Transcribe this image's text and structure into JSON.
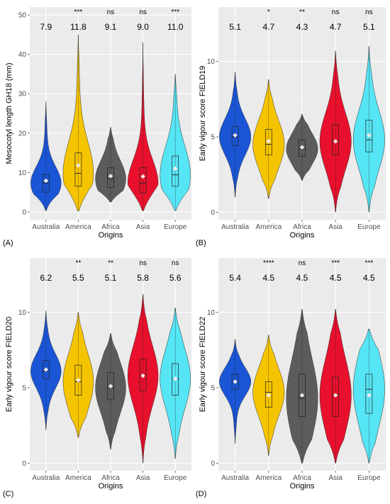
{
  "figure": {
    "x_axis_title": "Origins",
    "categories": [
      "Australia",
      "America",
      "Africa",
      "Asia",
      "Europe"
    ],
    "colors": {
      "Australia": "#1a55d6",
      "America": "#f5c400",
      "Africa": "#5c5c5c",
      "Asia": "#e8102c",
      "Europe": "#55e5f5"
    },
    "panel_background": "#ebebeb",
    "grid": true
  },
  "chart_data": [
    {
      "type": "violin",
      "panel_label": "(A)",
      "ylabel": "Mesocotyl length GH18 (mm)",
      "ylim": [
        -2,
        52
      ],
      "yticks": [
        0,
        10,
        20,
        30,
        40,
        50
      ],
      "categories": [
        "Australia",
        "America",
        "Africa",
        "Asia",
        "Europe"
      ],
      "means": [
        "7.9",
        "11.8",
        "9.1",
        "9.0",
        "11.0"
      ],
      "significance": [
        "",
        "***",
        "ns",
        "ns",
        "***"
      ],
      "mean_values": [
        7.9,
        11.8,
        9.1,
        9.0,
        11.0
      ],
      "min": [
        0.3,
        0.2,
        2.5,
        0.3,
        0.3
      ],
      "max": [
        28,
        45,
        21.5,
        43,
        35
      ],
      "q1": [
        5,
        6.5,
        6.2,
        4.8,
        6.5
      ],
      "median": [
        7.3,
        9.8,
        8.4,
        7.3,
        9.4
      ],
      "q3": [
        9.5,
        15,
        11.2,
        11.2,
        14.2
      ]
    },
    {
      "type": "violin",
      "panel_label": "(B)",
      "ylabel": "Early vigour score FIELD19",
      "ylim": [
        -0.5,
        13.6
      ],
      "yticks": [
        0,
        5,
        10
      ],
      "categories": [
        "Australia",
        "America",
        "Africa",
        "Asia",
        "Europe"
      ],
      "means": [
        "5.1",
        "4.7",
        "4.3",
        "4.7",
        "5.1"
      ],
      "significance": [
        "",
        "*",
        "**",
        "ns",
        "ns"
      ],
      "mean_values": [
        5.1,
        4.7,
        4.3,
        4.7,
        5.1
      ],
      "min": [
        1.0,
        0.9,
        2.1,
        0.0,
        0.0
      ],
      "max": [
        9.3,
        8.8,
        6.5,
        10.7,
        11.0
      ],
      "q1": [
        4.4,
        3.8,
        3.7,
        3.8,
        4.0
      ],
      "median": [
        5.0,
        4.5,
        4.2,
        4.7,
        4.8
      ],
      "q3": [
        5.7,
        5.5,
        4.8,
        5.8,
        6.1
      ]
    },
    {
      "type": "violin",
      "panel_label": "(C)",
      "ylabel": "Early vigour score FIELD20",
      "ylim": [
        -0.5,
        13.6
      ],
      "yticks": [
        0,
        5,
        10
      ],
      "categories": [
        "Australia",
        "America",
        "Africa",
        "Asia",
        "Europe"
      ],
      "means": [
        "6.2",
        "5.5",
        "5.1",
        "5.8",
        "5.6"
      ],
      "significance": [
        "",
        "**",
        "**",
        "ns",
        "ns"
      ],
      "mean_values": [
        6.2,
        5.5,
        5.1,
        5.8,
        5.6
      ],
      "min": [
        2.2,
        1.7,
        0.9,
        0.0,
        0.3
      ],
      "max": [
        10.1,
        10.0,
        8.6,
        11.2,
        10.3
      ],
      "q1": [
        5.6,
        4.5,
        4.2,
        4.8,
        4.5
      ],
      "median": [
        6.1,
        5.4,
        5.0,
        5.8,
        5.6
      ],
      "q3": [
        6.8,
        6.5,
        6.0,
        6.9,
        6.6
      ]
    },
    {
      "type": "violin",
      "panel_label": "(D)",
      "ylabel": "Early vigour score FIELD22",
      "ylim": [
        -0.5,
        13.6
      ],
      "yticks": [
        0,
        5,
        10
      ],
      "categories": [
        "Australia",
        "America",
        "Africa",
        "Asia",
        "Europe"
      ],
      "means": [
        "5.4",
        "4.5",
        "4.5",
        "4.5",
        "4.5"
      ],
      "significance": [
        "",
        "****",
        "ns",
        "***",
        "***"
      ],
      "mean_values": [
        5.4,
        4.5,
        4.5,
        4.5,
        4.5
      ],
      "min": [
        1.3,
        0.5,
        0.0,
        0.0,
        0.0
      ],
      "max": [
        8.2,
        8.5,
        10.2,
        10.2,
        8.9
      ],
      "q1": [
        4.9,
        3.7,
        3.1,
        3.1,
        3.3
      ],
      "median": [
        5.4,
        4.7,
        4.3,
        4.5,
        4.9
      ],
      "q3": [
        5.9,
        5.4,
        5.9,
        5.7,
        5.9
      ]
    }
  ]
}
